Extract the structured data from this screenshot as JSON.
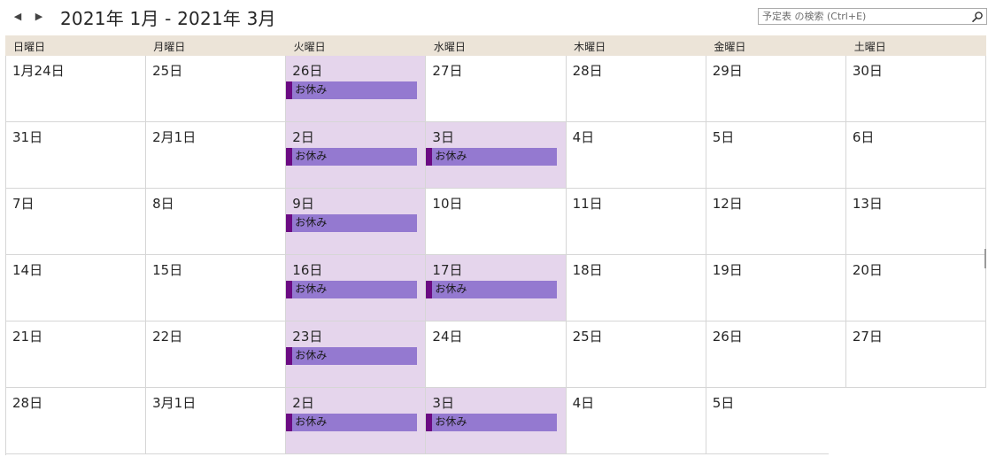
{
  "header": {
    "prev_arrow": "◀",
    "next_arrow": "▶",
    "title": "2021年 1月 - 2021年 3月",
    "search_placeholder": "予定表 の検索 (Ctrl+E)"
  },
  "weekdays": [
    "日曜日",
    "月曜日",
    "火曜日",
    "水曜日",
    "木曜日",
    "金曜日",
    "土曜日"
  ],
  "weeks": [
    [
      {
        "date": "1月24日",
        "off": false,
        "event": null
      },
      {
        "date": "25日",
        "off": false,
        "event": null
      },
      {
        "date": "26日",
        "off": true,
        "event": "お休み"
      },
      {
        "date": "27日",
        "off": false,
        "event": null
      },
      {
        "date": "28日",
        "off": false,
        "event": null
      },
      {
        "date": "29日",
        "off": false,
        "event": null
      },
      {
        "date": "30日",
        "off": false,
        "event": null
      }
    ],
    [
      {
        "date": "31日",
        "off": false,
        "event": null
      },
      {
        "date": "2月1日",
        "off": false,
        "event": null
      },
      {
        "date": "2日",
        "off": true,
        "event": "お休み"
      },
      {
        "date": "3日",
        "off": true,
        "event": "お休み"
      },
      {
        "date": "4日",
        "off": false,
        "event": null
      },
      {
        "date": "5日",
        "off": false,
        "event": null
      },
      {
        "date": "6日",
        "off": false,
        "event": null
      }
    ],
    [
      {
        "date": "7日",
        "off": false,
        "event": null
      },
      {
        "date": "8日",
        "off": false,
        "event": null
      },
      {
        "date": "9日",
        "off": true,
        "event": "お休み"
      },
      {
        "date": "10日",
        "off": false,
        "event": null
      },
      {
        "date": "11日",
        "off": false,
        "event": null
      },
      {
        "date": "12日",
        "off": false,
        "event": null
      },
      {
        "date": "13日",
        "off": false,
        "event": null
      }
    ],
    [
      {
        "date": "14日",
        "off": false,
        "event": null
      },
      {
        "date": "15日",
        "off": false,
        "event": null
      },
      {
        "date": "16日",
        "off": true,
        "event": "お休み"
      },
      {
        "date": "17日",
        "off": true,
        "event": "お休み"
      },
      {
        "date": "18日",
        "off": false,
        "event": null
      },
      {
        "date": "19日",
        "off": false,
        "event": null
      },
      {
        "date": "20日",
        "off": false,
        "event": null
      }
    ],
    [
      {
        "date": "21日",
        "off": false,
        "event": null
      },
      {
        "date": "22日",
        "off": false,
        "event": null
      },
      {
        "date": "23日",
        "off": true,
        "event": "お休み"
      },
      {
        "date": "24日",
        "off": false,
        "event": null
      },
      {
        "date": "25日",
        "off": false,
        "event": null
      },
      {
        "date": "26日",
        "off": false,
        "event": null
      },
      {
        "date": "27日",
        "off": false,
        "event": null
      }
    ],
    [
      {
        "date": "28日",
        "off": false,
        "event": null
      },
      {
        "date": "3月1日",
        "off": false,
        "event": null
      },
      {
        "date": "2日",
        "off": true,
        "event": "お休み"
      },
      {
        "date": "3日",
        "off": true,
        "event": "お休み"
      },
      {
        "date": "4日",
        "off": false,
        "event": null
      },
      {
        "date": "5日",
        "off": false,
        "event": null
      },
      {
        "date": "",
        "off": false,
        "event": null
      }
    ]
  ],
  "colors": {
    "header_bg": "#ece4d8",
    "off_day_bg": "#e5d5ec",
    "event_bg": "#9479d0",
    "event_stripe": "#6b0b83",
    "grid_line": "#d6d6d6"
  },
  "icons": {
    "prev": "left-triangle-icon",
    "next": "right-triangle-icon",
    "search": "magnifier-icon"
  }
}
